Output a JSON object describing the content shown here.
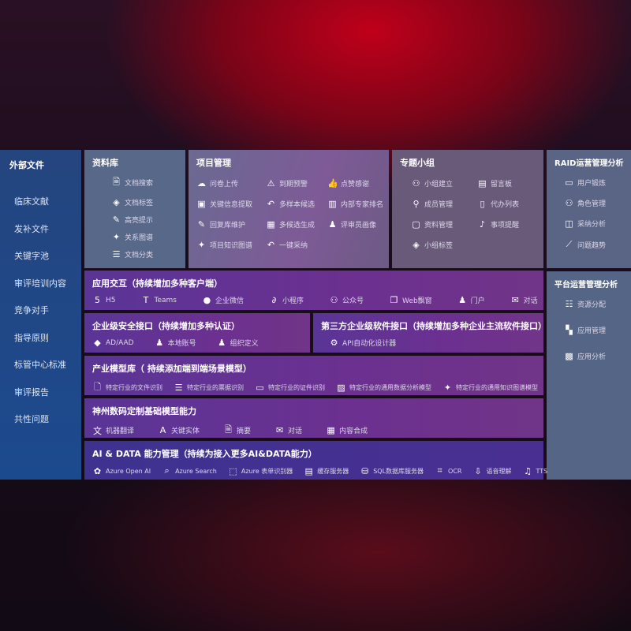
{
  "sidebar": {
    "title": "外部文件",
    "items": [
      "临床文献",
      "发补文件",
      "关键字池",
      "审评培训内容",
      "竞争对手",
      "指导原则",
      "标管中心标准",
      "审评报告",
      "共性问题"
    ]
  },
  "library": {
    "title": "资料库",
    "items": [
      {
        "icon": "doc-search-icon",
        "label": "文档搜索"
      },
      {
        "icon": "tag-icon",
        "label": "文档标签"
      },
      {
        "icon": "pen-icon",
        "label": "高亮提示"
      },
      {
        "icon": "graph-icon",
        "label": "关系图谱"
      },
      {
        "icon": "doc-category-icon",
        "label": "文档分类"
      }
    ]
  },
  "project": {
    "title": "项目管理",
    "items": [
      {
        "icon": "cloud-upload-icon",
        "label": "问卷上传"
      },
      {
        "icon": "alarm-icon",
        "label": "到期预警"
      },
      {
        "icon": "thumbs-up-icon",
        "label": "点赞感谢"
      },
      {
        "icon": "window-icon",
        "label": "关键信息提取"
      },
      {
        "icon": "reply-icon",
        "label": "多样本候选"
      },
      {
        "icon": "ranking-icon",
        "label": "内部专家排名"
      },
      {
        "icon": "edit-icon",
        "label": "回复库维护"
      },
      {
        "icon": "puzzle-icon",
        "label": "多候选生成"
      },
      {
        "icon": "person-icon",
        "label": "评审员画像"
      },
      {
        "icon": "graph-icon",
        "label": "项目知识图谱"
      },
      {
        "icon": "reply-icon",
        "label": "一键采纳"
      }
    ]
  },
  "group": {
    "title": "专题小组",
    "items": [
      {
        "icon": "group-icon",
        "label": "小组建立"
      },
      {
        "icon": "bbs-icon",
        "label": "留言板"
      },
      {
        "icon": "user-add-icon",
        "label": "成员管理"
      },
      {
        "icon": "clipboard-icon",
        "label": "代办列表"
      },
      {
        "icon": "folder-icon",
        "label": "资料管理"
      },
      {
        "icon": "bell-icon",
        "label": "事项提醒"
      },
      {
        "icon": "tag-icon",
        "label": "小组标签"
      }
    ]
  },
  "raid": {
    "title": "RAID运营管理分析",
    "items": [
      {
        "icon": "id-card-icon",
        "label": "用户锻炼"
      },
      {
        "icon": "users-icon",
        "label": "角色管理"
      },
      {
        "icon": "qa-icon",
        "label": "采纳分析"
      },
      {
        "icon": "trend-icon",
        "label": "问题趋势"
      }
    ]
  },
  "platform": {
    "title": "平台运营管理分析",
    "items": [
      {
        "icon": "checklist-icon",
        "label": "资源分配"
      },
      {
        "icon": "apps-icon",
        "label": "应用管理"
      },
      {
        "icon": "analysis-icon",
        "label": "应用分析"
      }
    ]
  },
  "app": {
    "title": "应用交互（持续增加多种客户端）",
    "items": [
      {
        "icon": "html5-icon",
        "label": "H5"
      },
      {
        "icon": "teams-icon",
        "label": "Teams"
      },
      {
        "icon": "wechat-icon",
        "label": "企业微信"
      },
      {
        "icon": "miniprogram-icon",
        "label": "小程序"
      },
      {
        "icon": "official-account-icon",
        "label": "公众号"
      },
      {
        "icon": "web-window-icon",
        "label": "Web飘窗"
      },
      {
        "icon": "portal-icon",
        "label": "门户"
      },
      {
        "icon": "chat-icon",
        "label": "对话"
      }
    ]
  },
  "security": {
    "title": "企业级安全接口（持续增加多种认证）",
    "items": [
      {
        "icon": "ad-icon",
        "label": "AD/AAD"
      },
      {
        "icon": "local-account-icon",
        "label": "本地账号"
      },
      {
        "icon": "org-icon",
        "label": "组织定义"
      }
    ]
  },
  "thirdparty": {
    "title": "第三方企业级软件接口（持续增加多种企业主流软件接口）",
    "items": [
      {
        "icon": "api-gear-icon",
        "label": "API自动化设计器"
      }
    ]
  },
  "industry": {
    "title": "产业模型库（ 持续添加端到端场景模型）",
    "items": [
      {
        "icon": "file-icon",
        "label": "特定行业的文件识别"
      },
      {
        "icon": "receipt-icon",
        "label": "特定行业的票据识别"
      },
      {
        "icon": "id-card-icon",
        "label": "特定行业的证件识别"
      },
      {
        "icon": "chart-icon",
        "label": "特定行业的通用数据分析模型"
      },
      {
        "icon": "graph-icon",
        "label": "特定行业的通用知识图谱模型"
      }
    ]
  },
  "base": {
    "title": "神州数码定制基础模型能力",
    "items": [
      {
        "icon": "translate-icon",
        "label": "机器翻译"
      },
      {
        "icon": "entity-icon",
        "label": "关键实体"
      },
      {
        "icon": "summary-icon",
        "label": "摘要"
      },
      {
        "icon": "chat-icon",
        "label": "对话"
      },
      {
        "icon": "compose-icon",
        "label": "内容合成"
      }
    ]
  },
  "aidata": {
    "title": "AI & DATA 能力管理（持续为接入更多AI&DATA能力）",
    "items": [
      {
        "icon": "openai-icon",
        "label": "Azure Open AI"
      },
      {
        "icon": "search-icon",
        "label": "Azure Search"
      },
      {
        "icon": "form-recognizer-icon",
        "label": "Azure 表单识别器"
      },
      {
        "icon": "cache-icon",
        "label": "缓存服务器"
      },
      {
        "icon": "sql-icon",
        "label": "SQL数据库服务器"
      },
      {
        "icon": "ocr-icon",
        "label": "OCR"
      },
      {
        "icon": "speech-icon",
        "label": "语音理解"
      },
      {
        "icon": "tts-icon",
        "label": "TTS"
      }
    ]
  }
}
